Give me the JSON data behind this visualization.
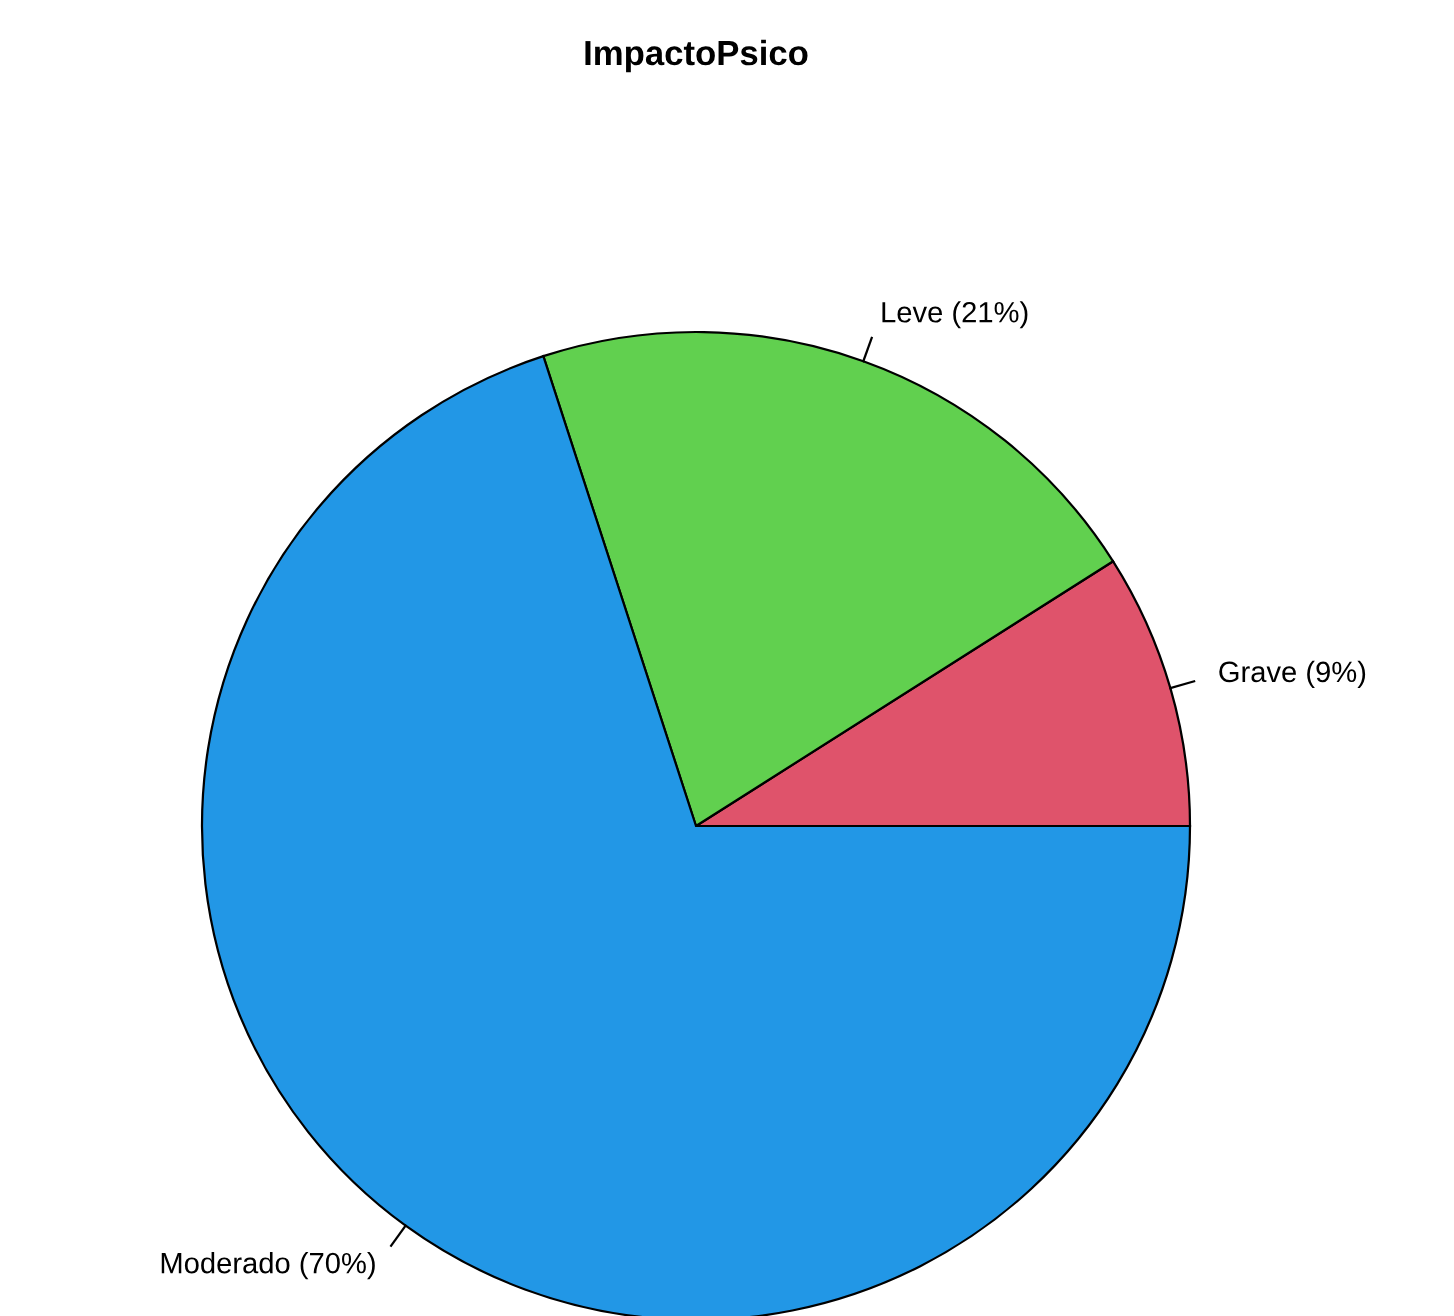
{
  "chart_data": {
    "type": "pie",
    "title": "ImpactoPsico",
    "categories": [
      "Grave (9%)",
      "Leve (21%)",
      "Moderado (70%)"
    ],
    "values": [
      9,
      21,
      70
    ],
    "colors": [
      "#df536b",
      "#61d04f",
      "#2297e6"
    ]
  }
}
